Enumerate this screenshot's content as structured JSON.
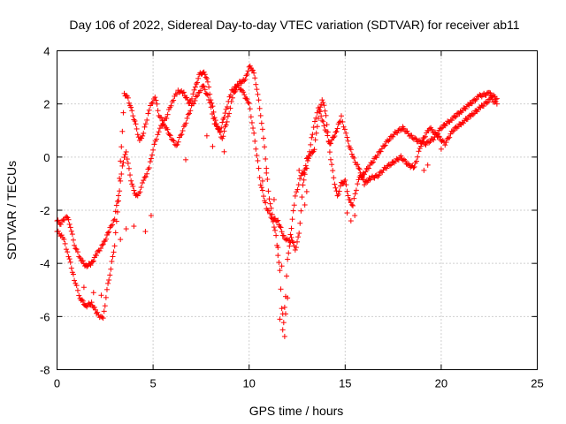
{
  "chart_data": {
    "type": "scatter",
    "title": "Day 106 of 2022, Sidereal Day-to-day VTEC variation (SDTVAR) for receiver ab11",
    "xlabel": "GPS time / hours",
    "ylabel": "SDTVAR / TECUs",
    "xlim": [
      0,
      25
    ],
    "ylim": [
      -8,
      4
    ],
    "xticks": [
      "0",
      "5",
      "10",
      "15",
      "20",
      "25"
    ],
    "yticks": [
      "-8",
      "-6",
      "-4",
      "-2",
      "0",
      "2",
      "4"
    ],
    "grid": true,
    "marker": "+",
    "color": "#ff0000",
    "series": [
      {
        "name": "SDTVAR",
        "path": [
          [
            0.0,
            -2.8
          ],
          [
            0.3,
            -3.0
          ],
          [
            0.6,
            -3.7
          ],
          [
            0.9,
            -4.6
          ],
          [
            1.2,
            -5.3
          ],
          [
            1.5,
            -5.6
          ],
          [
            1.8,
            -5.5
          ],
          [
            2.1,
            -5.9
          ],
          [
            2.4,
            -6.1
          ],
          [
            2.6,
            -5.0
          ],
          [
            2.8,
            -4.2
          ],
          [
            3.0,
            -3.3
          ],
          [
            3.2,
            -1.6
          ],
          [
            3.4,
            -0.3
          ],
          [
            3.6,
            0.2
          ],
          [
            3.8,
            -0.7
          ],
          [
            4.0,
            -1.3
          ],
          [
            4.2,
            -1.5
          ],
          [
            4.5,
            -0.9
          ],
          [
            4.8,
            -0.4
          ],
          [
            5.0,
            0.3
          ],
          [
            5.3,
            1.0
          ],
          [
            5.7,
            1.5
          ],
          [
            6.0,
            2.1
          ],
          [
            6.3,
            2.5
          ],
          [
            6.6,
            2.4
          ],
          [
            6.9,
            2.0
          ],
          [
            7.2,
            2.6
          ],
          [
            7.4,
            3.1
          ],
          [
            7.6,
            3.2
          ],
          [
            7.8,
            3.0
          ],
          [
            8.0,
            2.2
          ],
          [
            8.3,
            1.2
          ],
          [
            8.6,
            0.7
          ],
          [
            8.9,
            1.5
          ],
          [
            9.2,
            2.4
          ],
          [
            9.5,
            2.8
          ],
          [
            9.8,
            2.9
          ],
          [
            10.0,
            3.4
          ],
          [
            10.2,
            3.3
          ],
          [
            10.4,
            2.6
          ],
          [
            10.6,
            1.6
          ],
          [
            10.8,
            0.4
          ],
          [
            11.0,
            -1.3
          ],
          [
            11.2,
            -2.2
          ],
          [
            11.4,
            -3.0
          ],
          [
            11.6,
            -4.3
          ],
          [
            11.7,
            -5.7
          ],
          [
            11.8,
            -6.2
          ],
          [
            11.9,
            -5.2
          ],
          [
            12.0,
            -3.8
          ],
          [
            12.2,
            -3.0
          ],
          [
            12.4,
            -3.5
          ],
          [
            12.6,
            -2.9
          ],
          [
            12.8,
            -1.1
          ],
          [
            13.0,
            -0.1
          ],
          [
            13.2,
            0.1
          ],
          [
            13.4,
            0.3
          ],
          [
            13.6,
            1.5
          ],
          [
            13.8,
            2.2
          ],
          [
            14.0,
            1.6
          ],
          [
            14.2,
            0.2
          ],
          [
            14.4,
            -0.8
          ],
          [
            14.6,
            -1.5
          ],
          [
            14.8,
            -1.0
          ],
          [
            15.0,
            -0.9
          ],
          [
            15.2,
            -1.6
          ],
          [
            15.4,
            -1.8
          ],
          [
            15.7,
            -0.8
          ],
          [
            16.0,
            -0.6
          ],
          [
            16.4,
            -0.2
          ],
          [
            16.8,
            0.2
          ],
          [
            17.2,
            0.6
          ],
          [
            17.6,
            0.9
          ],
          [
            18.0,
            1.1
          ],
          [
            18.4,
            0.8
          ],
          [
            18.8,
            0.6
          ],
          [
            19.2,
            0.5
          ],
          [
            19.6,
            0.7
          ],
          [
            20.0,
            1.1
          ],
          [
            20.5,
            1.4
          ],
          [
            21.0,
            1.7
          ],
          [
            21.5,
            2.0
          ],
          [
            22.0,
            2.3
          ],
          [
            22.5,
            2.4
          ],
          [
            22.9,
            2.2
          ]
        ],
        "path_b": [
          [
            0.0,
            -2.4
          ],
          [
            0.2,
            -2.5
          ],
          [
            0.5,
            -2.2
          ],
          [
            0.7,
            -2.6
          ],
          [
            0.9,
            -3.3
          ],
          [
            1.2,
            -3.8
          ],
          [
            1.5,
            -4.1
          ],
          [
            1.8,
            -4.0
          ],
          [
            2.1,
            -3.6
          ],
          [
            2.4,
            -3.3
          ],
          [
            2.7,
            -2.8
          ],
          [
            3.0,
            -2.3
          ],
          [
            3.2,
            -1.4
          ],
          [
            3.4,
            1.0
          ],
          [
            3.5,
            2.4
          ],
          [
            3.7,
            2.2
          ],
          [
            3.9,
            1.7
          ],
          [
            4.1,
            1.2
          ],
          [
            4.3,
            0.6
          ],
          [
            4.5,
            0.9
          ],
          [
            4.8,
            1.8
          ],
          [
            5.1,
            2.3
          ],
          [
            5.3,
            1.6
          ],
          [
            5.6,
            1.2
          ],
          [
            5.9,
            0.8
          ],
          [
            6.2,
            0.4
          ],
          [
            6.6,
            1.1
          ],
          [
            7.0,
            1.9
          ],
          [
            7.3,
            2.3
          ],
          [
            7.6,
            2.7
          ],
          [
            7.9,
            2.2
          ],
          [
            8.2,
            1.3
          ],
          [
            8.5,
            1.0
          ],
          [
            8.8,
            1.8
          ],
          [
            9.1,
            2.5
          ],
          [
            9.4,
            2.7
          ],
          [
            9.7,
            2.4
          ],
          [
            10.0,
            2.0
          ],
          [
            10.2,
            1.1
          ],
          [
            10.4,
            0.1
          ],
          [
            10.6,
            -1.0
          ],
          [
            10.9,
            -1.9
          ],
          [
            11.2,
            -2.3
          ],
          [
            11.5,
            -2.4
          ],
          [
            11.8,
            -3.0
          ],
          [
            12.1,
            -3.2
          ],
          [
            12.4,
            -1.5
          ],
          [
            12.7,
            -0.7
          ],
          [
            13.0,
            -0.4
          ],
          [
            13.3,
            0.9
          ],
          [
            13.6,
            1.9
          ],
          [
            13.9,
            1.2
          ],
          [
            14.2,
            0.5
          ],
          [
            14.5,
            0.9
          ],
          [
            14.8,
            1.5
          ],
          [
            15.1,
            0.7
          ],
          [
            15.4,
            0.0
          ],
          [
            15.7,
            -0.4
          ],
          [
            16.0,
            -1.0
          ],
          [
            16.3,
            -0.8
          ],
          [
            16.7,
            -0.7
          ],
          [
            17.1,
            -0.4
          ],
          [
            17.5,
            -0.2
          ],
          [
            17.9,
            0.0
          ],
          [
            18.3,
            -0.3
          ],
          [
            18.6,
            -0.4
          ],
          [
            19.0,
            0.6
          ],
          [
            19.4,
            1.1
          ],
          [
            19.8,
            0.8
          ],
          [
            20.2,
            0.5
          ],
          [
            20.6,
            1.0
          ],
          [
            21.1,
            1.3
          ],
          [
            21.6,
            1.6
          ],
          [
            22.1,
            1.9
          ],
          [
            22.6,
            2.2
          ],
          [
            22.9,
            2.0
          ]
        ],
        "extra_points": [
          [
            11.6,
            -6.1
          ],
          [
            11.75,
            -6.5
          ],
          [
            11.85,
            -6.75
          ],
          [
            11.9,
            -5.9
          ],
          [
            12.0,
            -5.3
          ],
          [
            11.7,
            -4.1
          ],
          [
            11.5,
            -3.4
          ],
          [
            11.3,
            -1.6
          ],
          [
            10.9,
            -0.6
          ],
          [
            10.7,
            -0.9
          ],
          [
            8.7,
            0.2
          ],
          [
            8.1,
            0.4
          ],
          [
            7.8,
            0.8
          ],
          [
            15.3,
            -2.4
          ],
          [
            15.5,
            -2.2
          ],
          [
            15.1,
            -2.1
          ],
          [
            13.0,
            -1.3
          ],
          [
            12.9,
            -1.8
          ],
          [
            12.6,
            -0.5
          ],
          [
            19.3,
            -0.3
          ],
          [
            19.1,
            -0.5
          ],
          [
            20.0,
            0.3
          ],
          [
            6.7,
            -0.1
          ],
          [
            4.6,
            -2.8
          ],
          [
            4.9,
            -2.2
          ],
          [
            2.3,
            -5.2
          ],
          [
            1.9,
            -5.1
          ],
          [
            1.4,
            -4.9
          ],
          [
            3.3,
            -3.1
          ],
          [
            3.6,
            -2.7
          ],
          [
            4.0,
            -2.6
          ]
        ]
      }
    ]
  }
}
